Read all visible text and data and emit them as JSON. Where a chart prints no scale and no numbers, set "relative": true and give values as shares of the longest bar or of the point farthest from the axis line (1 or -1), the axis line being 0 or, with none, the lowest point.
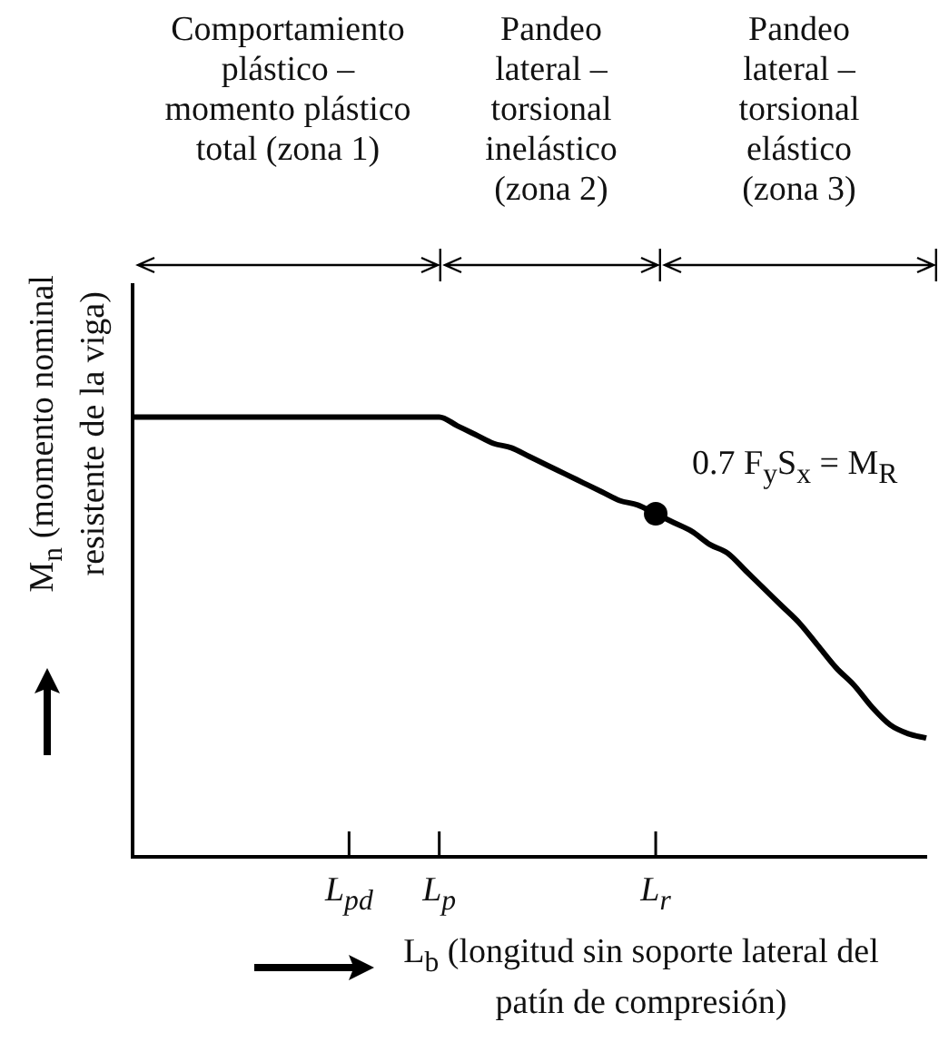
{
  "chart_data": {
    "type": "line",
    "relative": true,
    "xlabel": "L$_{b}$ (longitud sin soporte lateral del patín de compresión)",
    "ylabel": "M$_{n}$ (momento nominal resistente de la viga)",
    "categories": [
      null,
      null,
      null,
      null,
      null,
      null,
      null,
      null,
      null,
      null,
      null,
      null,
      "L$_{pd}$",
      null,
      null,
      null,
      null,
      "L$_{p}$",
      null,
      null,
      null,
      null,
      null,
      null,
      null,
      null,
      null,
      null,
      null,
      "L$_{r}$",
      null,
      null,
      null,
      null,
      null,
      null,
      null,
      null,
      null,
      null,
      null,
      null,
      null,
      null,
      null
    ],
    "tick_labels": "x",
    "legend": false,
    "series": [
      {
        "color": "#000000",
        "marker": "none",
        "values": [
          1,
          1,
          1,
          1,
          1,
          1,
          1,
          1,
          1,
          1,
          1,
          1,
          1,
          1,
          1,
          1,
          1,
          1,
          0.98,
          0.96,
          0.94,
          0.93,
          0.91,
          0.89,
          0.87,
          0.85,
          0.83,
          0.81,
          0.8,
          0.78,
          0.76,
          0.74,
          0.71,
          0.69,
          0.65,
          0.61,
          0.57,
          0.53,
          0.48,
          0.43,
          0.39,
          0.34,
          0.3,
          0.28,
          0.27
        ]
      },
      {
        "type": "scatter",
        "color": "#000000",
        "marker": "circle",
        "values": [
          null,
          null,
          null,
          null,
          null,
          null,
          null,
          null,
          null,
          null,
          null,
          null,
          null,
          null,
          null,
          null,
          null,
          null,
          null,
          null,
          null,
          null,
          null,
          null,
          null,
          null,
          null,
          null,
          null,
          0.78,
          null,
          null,
          null,
          null,
          null,
          null,
          null,
          null,
          null,
          null,
          null,
          null,
          null,
          null,
          null
        ]
      }
    ],
    "annotations": [
      "Comportamiento plástico – momento plástico total (zona 1)",
      "Pandeo lateral – torsional inelástico (zona 2)",
      "Pandeo lateral – torsional elástico (zona 3)",
      {
        "text": "0.7 F$_{y}$S$_{x}$ = M$_{R}$",
        "x": "L$_{r}$",
        "y": 0.78
      }
    ]
  }
}
